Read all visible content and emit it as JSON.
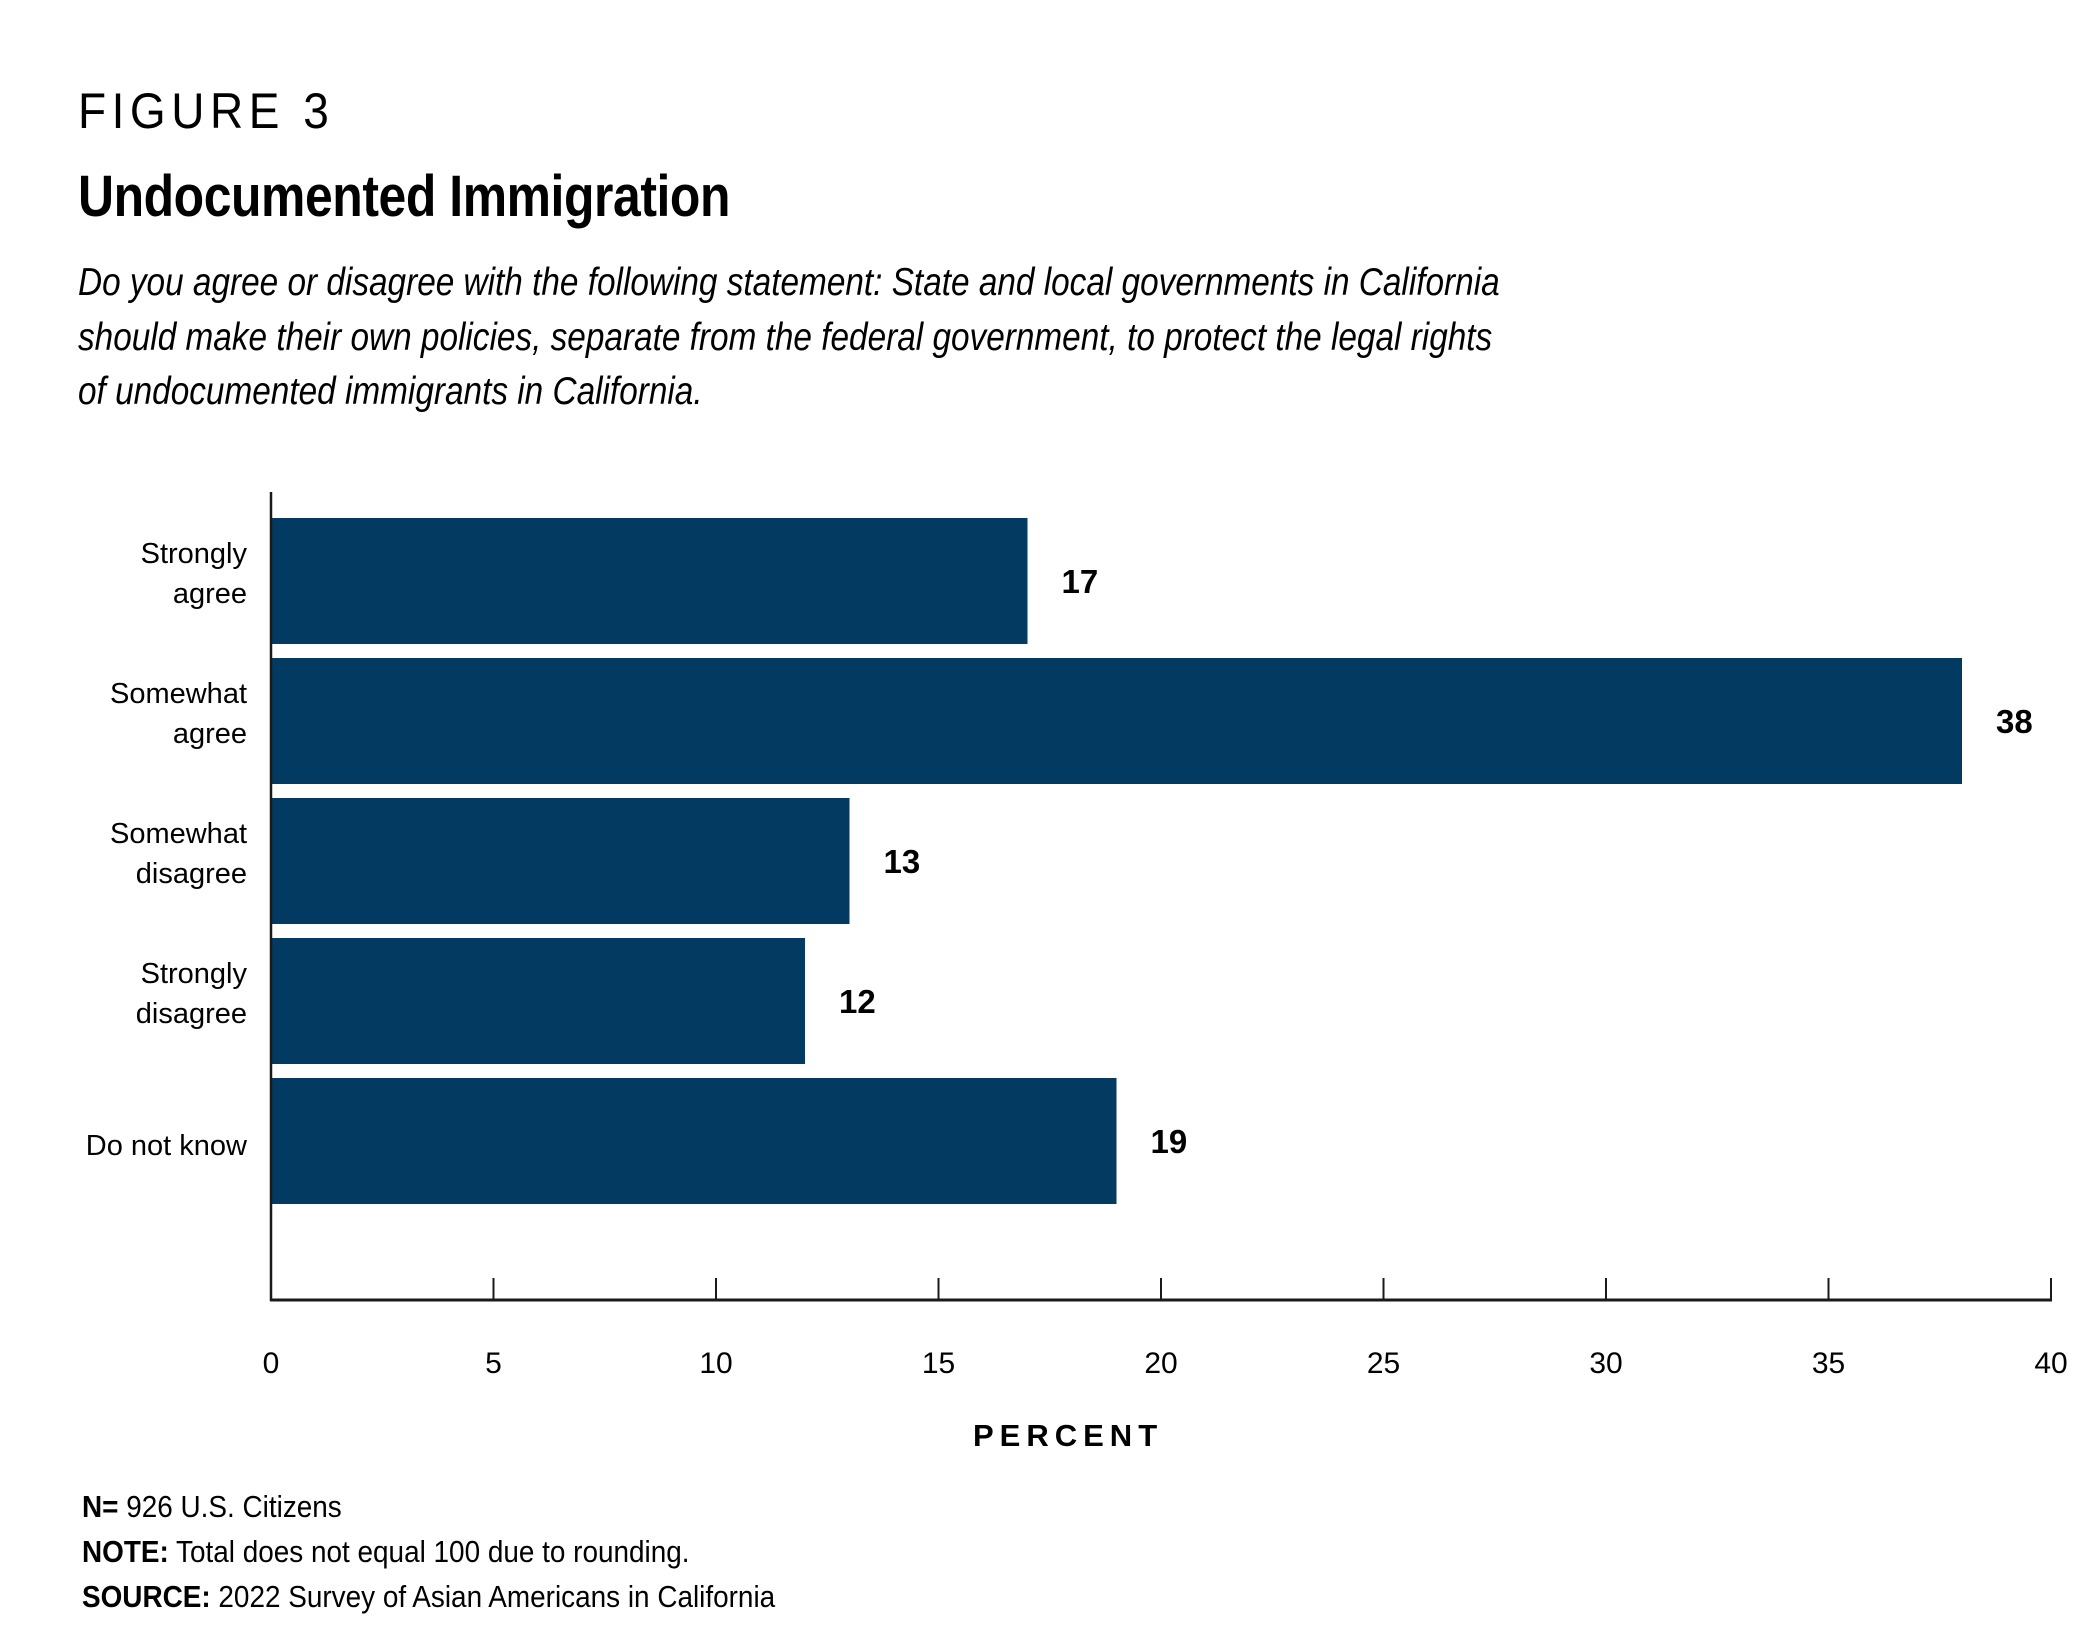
{
  "figure": {
    "label": "FIGURE 3",
    "title": "Undocumented Immigration",
    "question_lines": [
      "Do you agree or disagree with the following statement: State and local governments in California",
      "should make their own policies, separate from the federal government, to protect the legal rights",
      "of undocumented immigrants in California."
    ]
  },
  "chart_data": {
    "type": "bar",
    "orientation": "horizontal",
    "title": "Undocumented Immigration",
    "categories": [
      [
        "Strongly",
        "agree"
      ],
      [
        "Somewhat",
        "agree"
      ],
      [
        "Somewhat",
        "disagree"
      ],
      [
        "Strongly",
        "disagree"
      ],
      [
        "Do not know"
      ]
    ],
    "category_names": [
      "Strongly agree",
      "Somewhat agree",
      "Somewhat disagree",
      "Strongly disagree",
      "Do not know"
    ],
    "values": [
      17,
      38,
      13,
      12,
      19
    ],
    "value_labels": [
      "17",
      "38",
      "13",
      "12",
      "19"
    ],
    "xlabel": "PERCENT",
    "ylabel": "",
    "xlim": [
      0,
      40
    ],
    "xticks": [
      0,
      5,
      10,
      15,
      20,
      25,
      30,
      35,
      40
    ],
    "grid": false,
    "legend": "none",
    "bar_color": "#033A62"
  },
  "footer": {
    "n_label": "N=",
    "n_text": "926 U.S. Citizens",
    "note_label": "NOTE:",
    "note_text": "Total does not equal 100 due to rounding.",
    "source_label": "SOURCE:",
    "source_text": "2022 Survey of Asian Americans in California"
  }
}
